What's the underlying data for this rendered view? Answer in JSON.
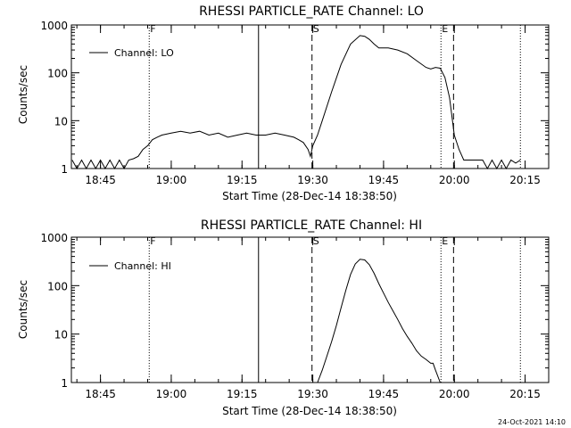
{
  "footer": {
    "stamp": "24-Oct-2021 14:10"
  },
  "chart_data": [
    {
      "type": "line",
      "title": "RHESSI PARTICLE_RATE Channel: LO",
      "xlabel": "Start Time (28-Dec-14 18:38:50)",
      "ylabel": "Counts/sec",
      "yscale": "log",
      "xlim": [
        "18:38:50",
        "20:20:00"
      ],
      "ylim": [
        1,
        1000
      ],
      "x_ticks": [
        "18:45",
        "19:00",
        "19:15",
        "19:30",
        "19:45",
        "20:00",
        "20:15"
      ],
      "y_ticks": [
        "1",
        "10",
        "100",
        "1000"
      ],
      "legend": {
        "label": "Channel: LO",
        "position": "top-left"
      },
      "markers": [
        {
          "label": "F",
          "time": "18:55:20",
          "style": "dotted"
        },
        {
          "label": "",
          "time": "19:18:30",
          "style": "solid"
        },
        {
          "label": "S",
          "time": "19:29:50",
          "style": "dashed"
        },
        {
          "label": "E",
          "time": "19:57:10",
          "style": "dotted"
        },
        {
          "label": "",
          "time": "19:59:50",
          "style": "dashed"
        },
        {
          "label": "",
          "time": "20:14:00",
          "style": "dotted"
        }
      ],
      "series": [
        {
          "x": [
            "18:39:00",
            "18:40:00",
            "18:41:00",
            "18:42:00",
            "18:43:00",
            "18:44:00",
            "18:45:00",
            "18:46:00",
            "18:47:00",
            "18:48:00",
            "18:49:00",
            "18:50:00",
            "18:51:00",
            "18:52:00",
            "18:53:00",
            "18:54:00",
            "18:55:00",
            "18:56:00",
            "18:57:00",
            "18:58:00",
            "19:00:00",
            "19:02:00",
            "19:04:00",
            "19:06:00",
            "19:08:00",
            "19:10:00",
            "19:12:00",
            "19:14:00",
            "19:16:00",
            "19:18:00",
            "19:20:00",
            "19:22:00",
            "19:24:00",
            "19:26:00",
            "19:27:00",
            "19:28:00",
            "19:29:00",
            "19:29:30",
            "19:30:00",
            "19:31:00",
            "19:32:00",
            "19:34:00",
            "19:36:00",
            "19:38:00",
            "19:40:00",
            "19:41:00",
            "19:42:00",
            "19:43:00",
            "19:44:00",
            "19:46:00",
            "19:48:00",
            "19:50:00",
            "19:52:00",
            "19:54:00",
            "19:55:00",
            "19:56:00",
            "19:57:00",
            "19:58:00",
            "19:59:00",
            "20:00:00",
            "20:01:00",
            "20:02:00",
            "20:03:00",
            "20:04:00",
            "20:05:00",
            "20:06:00",
            "20:07:00",
            "20:08:00",
            "20:09:00",
            "20:10:00",
            "20:11:00",
            "20:12:00",
            "20:13:00",
            "20:14:00"
          ],
          "values": [
            1.5,
            1,
            1.5,
            1,
            1.5,
            1,
            1.5,
            1,
            1.5,
            1,
            1.5,
            1,
            1.5,
            1.6,
            1.8,
            2.5,
            3,
            4,
            4.5,
            5,
            5.5,
            6,
            5.5,
            6,
            5,
            5.5,
            4.5,
            5,
            5.5,
            5,
            5,
            5.5,
            5,
            4.5,
            4,
            3.5,
            2.5,
            1.8,
            3,
            5,
            10,
            40,
            150,
            400,
            600,
            580,
            500,
            400,
            330,
            330,
            300,
            250,
            180,
            130,
            120,
            130,
            125,
            80,
            30,
            5,
            2.5,
            1.5,
            1.5,
            1.5,
            1.5,
            1.5,
            1,
            1.5,
            1,
            1.5,
            1,
            1.5,
            1.3,
            1.5
          ]
        }
      ]
    },
    {
      "type": "line",
      "title": "RHESSI PARTICLE_RATE Channel: HI",
      "xlabel": "Start Time (28-Dec-14 18:38:50)",
      "ylabel": "Counts/sec",
      "yscale": "log",
      "xlim": [
        "18:38:50",
        "20:20:00"
      ],
      "ylim": [
        1,
        1000
      ],
      "x_ticks": [
        "18:45",
        "19:00",
        "19:15",
        "19:30",
        "19:45",
        "20:00",
        "20:15"
      ],
      "y_ticks": [
        "1",
        "10",
        "100",
        "1000"
      ],
      "legend": {
        "label": "Channel: HI",
        "position": "top-left"
      },
      "markers": [
        {
          "label": "F",
          "time": "18:55:20",
          "style": "dotted"
        },
        {
          "label": "",
          "time": "19:18:30",
          "style": "solid"
        },
        {
          "label": "S",
          "time": "19:29:50",
          "style": "dashed"
        },
        {
          "label": "E",
          "time": "19:57:10",
          "style": "dotted"
        },
        {
          "label": "",
          "time": "19:59:50",
          "style": "dashed"
        },
        {
          "label": "",
          "time": "20:14:00",
          "style": "dotted"
        }
      ],
      "series": [
        {
          "x": [
            "19:31:00",
            "19:32:00",
            "19:33:00",
            "19:34:00",
            "19:35:00",
            "19:36:00",
            "19:37:00",
            "19:38:00",
            "19:39:00",
            "19:40:00",
            "19:41:00",
            "19:42:00",
            "19:43:00",
            "19:44:00",
            "19:45:00",
            "19:46:00",
            "19:47:00",
            "19:48:00",
            "19:49:00",
            "19:50:00",
            "19:51:00",
            "19:52:00",
            "19:53:00",
            "19:54:00",
            "19:55:00",
            "19:55:30",
            "19:56:00",
            "19:57:00"
          ],
          "values": [
            1,
            1.8,
            3.5,
            7,
            15,
            35,
            80,
            170,
            280,
            350,
            340,
            270,
            180,
            110,
            70,
            45,
            30,
            20,
            13,
            9,
            6.5,
            4.5,
            3.5,
            3,
            2.5,
            2.5,
            1.8,
            1
          ]
        }
      ]
    }
  ]
}
